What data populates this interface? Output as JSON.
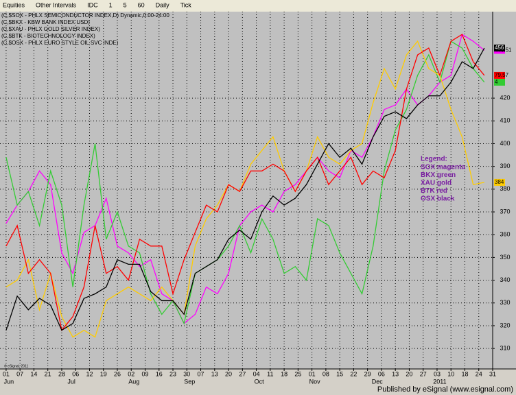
{
  "toolbar": {
    "items": [
      "Equities",
      "Other Intervals",
      "IDC",
      "1",
      "5",
      "60",
      "Daily",
      "Tick"
    ]
  },
  "chart_data": {
    "type": "line",
    "headers": [
      "(C,$SOX - PHLX SEMICONDUCTOR INDEX,D) Dynamic,0:00-24:00",
      "(C,$BKX - KBW BANK INDEX USD)",
      "(C,$XAU - PHLX GOLD SILVER INDEX)",
      "(C,$BTK - BIOTECHNOLOGY INDEX)",
      "(C,$OSX - PHLX EURO STYLE OIL SVC INDE)"
    ],
    "x": [
      0,
      4,
      8,
      12,
      16,
      20,
      24,
      28,
      32,
      36,
      40,
      44,
      48,
      52,
      56,
      60,
      64,
      68,
      72,
      76,
      80,
      84,
      88,
      92,
      96,
      100,
      104,
      108,
      112,
      116,
      120,
      124,
      128,
      132,
      136,
      140,
      144,
      148,
      152,
      156,
      160,
      164,
      168,
      172
    ],
    "xlim": [
      -2.2,
      175
    ],
    "xticks": [
      {
        "value": 0,
        "label": "01"
      },
      {
        "value": 5,
        "label": "07"
      },
      {
        "value": 10,
        "label": "14"
      },
      {
        "value": 15,
        "label": "21"
      },
      {
        "value": 20,
        "label": "28"
      },
      {
        "value": 25,
        "label": "06"
      },
      {
        "value": 30,
        "label": "12"
      },
      {
        "value": 35,
        "label": "19"
      },
      {
        "value": 40,
        "label": "26"
      },
      {
        "value": 45,
        "label": "02"
      },
      {
        "value": 50,
        "label": "09"
      },
      {
        "value": 55,
        "label": "16"
      },
      {
        "value": 60,
        "label": "23"
      },
      {
        "value": 65,
        "label": "30"
      },
      {
        "value": 70,
        "label": "07"
      },
      {
        "value": 75,
        "label": "13"
      },
      {
        "value": 80,
        "label": "20"
      },
      {
        "value": 85,
        "label": "27"
      },
      {
        "value": 90,
        "label": "04"
      },
      {
        "value": 95,
        "label": "11"
      },
      {
        "value": 100,
        "label": "18"
      },
      {
        "value": 105,
        "label": "25"
      },
      {
        "value": 110,
        "label": "01"
      },
      {
        "value": 115,
        "label": "08"
      },
      {
        "value": 120,
        "label": "15"
      },
      {
        "value": 125,
        "label": "22"
      },
      {
        "value": 130,
        "label": "29"
      },
      {
        "value": 135,
        "label": "06"
      },
      {
        "value": 140,
        "label": "13"
      },
      {
        "value": 145,
        "label": "20"
      },
      {
        "value": 150,
        "label": "27"
      },
      {
        "value": 155,
        "label": "03"
      },
      {
        "value": 160,
        "label": "10"
      },
      {
        "value": 165,
        "label": "18"
      },
      {
        "value": 170,
        "label": "24"
      },
      {
        "value": 175,
        "label": "31"
      }
    ],
    "month_labels": [
      {
        "value": 0,
        "label": "Jun"
      },
      {
        "value": 22.5,
        "label": "Jul"
      },
      {
        "value": 45,
        "label": "Aug"
      },
      {
        "value": 65,
        "label": "Sep"
      },
      {
        "value": 90,
        "label": "Oct"
      },
      {
        "value": 110,
        "label": "Nov"
      },
      {
        "value": 132.5,
        "label": "Dec"
      },
      {
        "value": 155,
        "label": "2011"
      }
    ],
    "ylim": [
      301,
      458
    ],
    "yticks": [
      310,
      320,
      330,
      340,
      350,
      360,
      370,
      380,
      390,
      400,
      410,
      420
    ],
    "grid": true,
    "series": [
      {
        "name": "SOX",
        "color": "#ff00ff",
        "last_label": "440.51",
        "values": [
          365,
          373,
          379,
          388,
          382,
          352,
          343,
          361,
          364,
          376,
          355,
          352,
          346,
          349,
          334,
          331,
          321,
          325,
          337,
          334,
          343,
          364,
          370,
          373,
          370,
          379,
          382,
          388,
          394,
          388,
          385,
          397,
          394,
          403,
          415,
          417,
          424,
          417,
          421,
          427,
          430,
          448,
          445,
          441
        ]
      },
      {
        "name": "BKX",
        "color": "#33cc33",
        "last_label": "4",
        "values": [
          394,
          373,
          379,
          364,
          388,
          373,
          337,
          373,
          400,
          358,
          370,
          355,
          352,
          334,
          325,
          331,
          321,
          343,
          346,
          349,
          355,
          364,
          352,
          367,
          358,
          343,
          346,
          340,
          367,
          364,
          352,
          343,
          334,
          355,
          388,
          406,
          415,
          430,
          439,
          427,
          445,
          442,
          433,
          427
        ]
      },
      {
        "name": "XAU",
        "color": "#ffcc00",
        "last_label": "384",
        "values": [
          337,
          340,
          349,
          327,
          343,
          324,
          315,
          318,
          315,
          331,
          334,
          337,
          334,
          331,
          337,
          331,
          325,
          355,
          367,
          373,
          382,
          379,
          391,
          397,
          403,
          388,
          379,
          388,
          403,
          394,
          391,
          397,
          400,
          418,
          433,
          424,
          439,
          445,
          433,
          430,
          415,
          403,
          382,
          383
        ]
      },
      {
        "name": "BTK",
        "color": "#ff0000",
        "last_label": "79.57",
        "values": [
          355,
          364,
          343,
          349,
          343,
          318,
          324,
          337,
          364,
          343,
          346,
          340,
          358,
          355,
          355,
          334,
          349,
          361,
          373,
          370,
          382,
          379,
          388,
          388,
          391,
          388,
          379,
          388,
          394,
          382,
          388,
          394,
          382,
          388,
          385,
          397,
          424,
          439,
          442,
          430,
          445,
          448,
          436,
          430
        ]
      },
      {
        "name": "OSX",
        "color": "#000000",
        "last_label": "456",
        "values": [
          318,
          333,
          327,
          332,
          329,
          318,
          321,
          332,
          334,
          337,
          349,
          347,
          347,
          335,
          331,
          331,
          325,
          343,
          346,
          349,
          358,
          362,
          358,
          370,
          377,
          373,
          376,
          382,
          391,
          400,
          394,
          398,
          391,
          403,
          412,
          414,
          411,
          417,
          421,
          421,
          427,
          436,
          433,
          442
        ]
      }
    ],
    "legend": {
      "title": "Legend:",
      "entries": [
        "SOX magenta",
        "BKX green",
        "XAU gold",
        "BTK red",
        "OSX black"
      ]
    },
    "copyright": "© eSignal, 2011"
  },
  "footer": "Published by eSignal (www.esignal.com)"
}
